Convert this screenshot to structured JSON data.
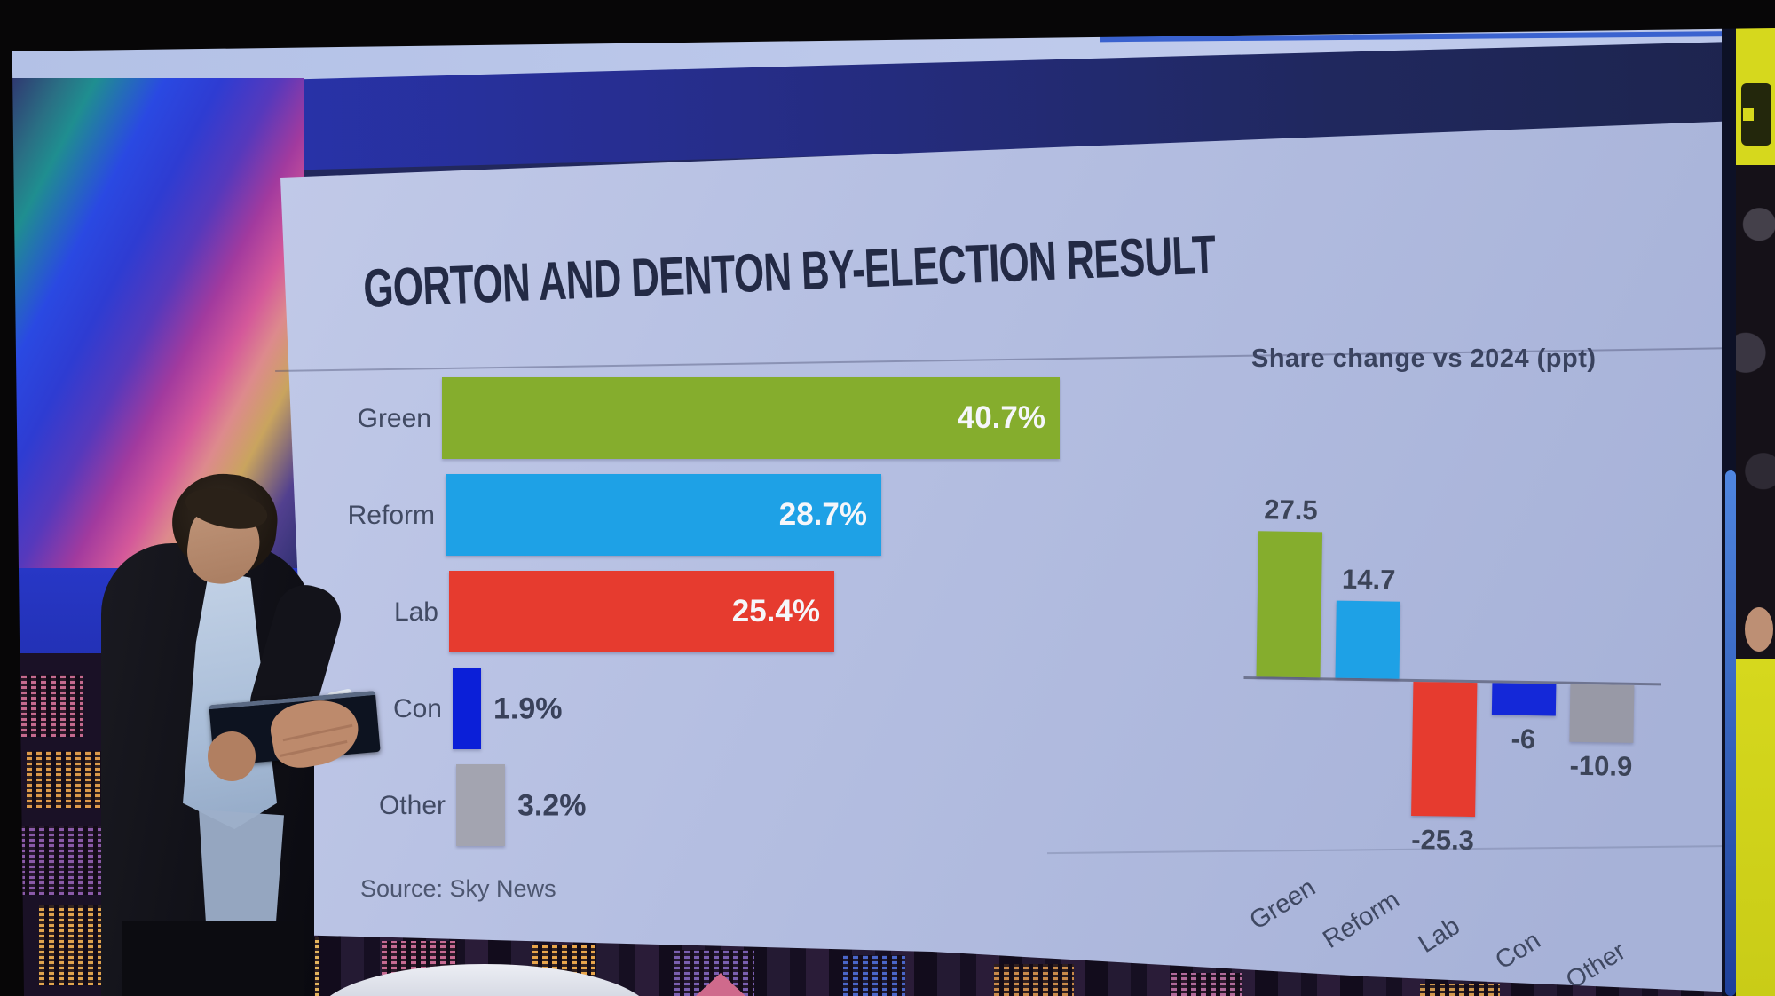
{
  "board": {
    "title": "GORTON AND DENTON BY-ELECTION RESULT",
    "source": "Source: Sky News"
  },
  "chart_data": [
    {
      "type": "bar",
      "orientation": "horizontal",
      "title": "",
      "categories": [
        "Green",
        "Reform",
        "Lab",
        "Con",
        "Other"
      ],
      "values": [
        40.7,
        28.7,
        25.4,
        1.9,
        3.2
      ],
      "value_labels": [
        "40.7%",
        "28.7%",
        "25.4%",
        "1.9%",
        "3.2%"
      ],
      "colors": [
        "#85ad2d",
        "#1ea1e6",
        "#e63b2f",
        "#0b1fd8",
        "#a3a4b0"
      ],
      "xlim": [
        0,
        43
      ],
      "unit": "%",
      "grid": "off",
      "value_label_inside_color": "#f5f6fa",
      "value_label_outside_color": "#39415a"
    },
    {
      "type": "bar",
      "orientation": "vertical",
      "title": "Share change vs 2024 (ppt)",
      "categories": [
        "Green",
        "Reform",
        "Lab",
        "Con",
        "Other"
      ],
      "values": [
        27.5,
        14.7,
        -25.3,
        -6,
        -10.9
      ],
      "value_labels": [
        "27.5",
        "14.7",
        "-25.3",
        "-6",
        "-10.9"
      ],
      "colors": [
        "#85ad2d",
        "#1ea1e6",
        "#e63b2f",
        "#1428d8",
        "#9899a6"
      ],
      "ylim": [
        -27,
        29
      ],
      "baseline": 0,
      "unit": "ppt",
      "grid": "off",
      "category_label_rotation_deg": -33
    }
  ],
  "studio": {
    "side_panel_color": "#d6d81d",
    "board_color": "#b4bee1",
    "title_color": "#232a45"
  }
}
